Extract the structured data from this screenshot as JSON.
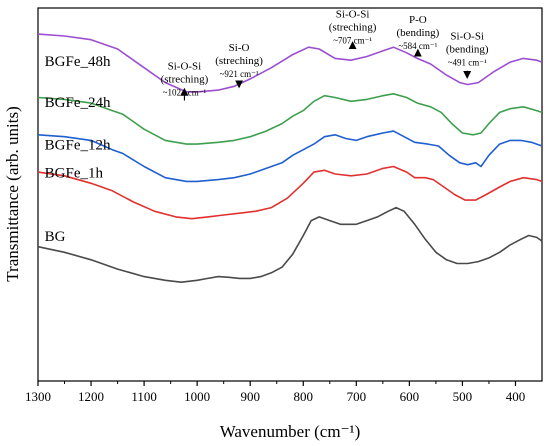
{
  "chart_data": {
    "type": "line",
    "xlabel": "Wavenumber (cm⁻¹)",
    "ylabel": "Transmittance (arb. units)",
    "xlim": [
      1300,
      350
    ],
    "x_reversed": true,
    "x_ticks": [
      1300,
      1200,
      1100,
      1000,
      900,
      800,
      700,
      600,
      500,
      400
    ],
    "y_ticks_shown": false,
    "grid": false,
    "series": [
      {
        "name": "BGFe_48h",
        "color": "#9b4fd0",
        "label_pos": [
          1295,
          0.845
        ],
        "points": [
          [
            1300,
            0.93
          ],
          [
            1250,
            0.925
          ],
          [
            1200,
            0.915
          ],
          [
            1150,
            0.89
          ],
          [
            1100,
            0.84
          ],
          [
            1060,
            0.8
          ],
          [
            1020,
            0.775
          ],
          [
            1000,
            0.775
          ],
          [
            960,
            0.78
          ],
          [
            930,
            0.79
          ],
          [
            900,
            0.81
          ],
          [
            860,
            0.84
          ],
          [
            820,
            0.875
          ],
          [
            790,
            0.895
          ],
          [
            770,
            0.89
          ],
          [
            740,
            0.865
          ],
          [
            710,
            0.86
          ],
          [
            680,
            0.87
          ],
          [
            650,
            0.885
          ],
          [
            630,
            0.895
          ],
          [
            605,
            0.88
          ],
          [
            585,
            0.865
          ],
          [
            560,
            0.85
          ],
          [
            530,
            0.82
          ],
          [
            505,
            0.8
          ],
          [
            490,
            0.795
          ],
          [
            470,
            0.8
          ],
          [
            440,
            0.83
          ],
          [
            410,
            0.855
          ],
          [
            385,
            0.865
          ],
          [
            360,
            0.86
          ],
          [
            350,
            0.855
          ]
        ]
      },
      {
        "name": "BGFe_24h",
        "color": "#3f9f4f",
        "label_pos": [
          1295,
          0.735
        ],
        "points": [
          [
            1300,
            0.76
          ],
          [
            1250,
            0.755
          ],
          [
            1200,
            0.745
          ],
          [
            1160,
            0.725
          ],
          [
            1140,
            0.715
          ],
          [
            1100,
            0.675
          ],
          [
            1060,
            0.645
          ],
          [
            1020,
            0.635
          ],
          [
            1000,
            0.635
          ],
          [
            960,
            0.64
          ],
          [
            930,
            0.645
          ],
          [
            900,
            0.655
          ],
          [
            870,
            0.67
          ],
          [
            840,
            0.69
          ],
          [
            820,
            0.71
          ],
          [
            800,
            0.725
          ],
          [
            780,
            0.75
          ],
          [
            760,
            0.765
          ],
          [
            740,
            0.76
          ],
          [
            710,
            0.75
          ],
          [
            680,
            0.755
          ],
          [
            650,
            0.765
          ],
          [
            630,
            0.77
          ],
          [
            605,
            0.76
          ],
          [
            585,
            0.745
          ],
          [
            560,
            0.735
          ],
          [
            540,
            0.72
          ],
          [
            520,
            0.69
          ],
          [
            500,
            0.665
          ],
          [
            480,
            0.66
          ],
          [
            465,
            0.665
          ],
          [
            450,
            0.69
          ],
          [
            430,
            0.72
          ],
          [
            410,
            0.73
          ],
          [
            385,
            0.735
          ],
          [
            360,
            0.725
          ],
          [
            350,
            0.72
          ]
        ]
      },
      {
        "name": "BGFe_12h",
        "color": "#1f5fd0",
        "label_pos": [
          1295,
          0.62
        ],
        "points": [
          [
            1300,
            0.66
          ],
          [
            1250,
            0.655
          ],
          [
            1200,
            0.645
          ],
          [
            1160,
            0.62
          ],
          [
            1140,
            0.61
          ],
          [
            1100,
            0.575
          ],
          [
            1060,
            0.545
          ],
          [
            1020,
            0.535
          ],
          [
            1000,
            0.535
          ],
          [
            960,
            0.54
          ],
          [
            930,
            0.545
          ],
          [
            900,
            0.555
          ],
          [
            870,
            0.57
          ],
          [
            840,
            0.585
          ],
          [
            820,
            0.605
          ],
          [
            800,
            0.62
          ],
          [
            780,
            0.635
          ],
          [
            760,
            0.655
          ],
          [
            740,
            0.66
          ],
          [
            720,
            0.65
          ],
          [
            700,
            0.645
          ],
          [
            680,
            0.655
          ],
          [
            650,
            0.665
          ],
          [
            630,
            0.67
          ],
          [
            610,
            0.655
          ],
          [
            590,
            0.64
          ],
          [
            565,
            0.635
          ],
          [
            545,
            0.63
          ],
          [
            525,
            0.605
          ],
          [
            505,
            0.585
          ],
          [
            490,
            0.58
          ],
          [
            475,
            0.585
          ],
          [
            465,
            0.575
          ],
          [
            450,
            0.605
          ],
          [
            430,
            0.635
          ],
          [
            410,
            0.645
          ],
          [
            390,
            0.645
          ],
          [
            370,
            0.64
          ],
          [
            350,
            0.63
          ]
        ]
      },
      {
        "name": "BGFe_1h",
        "color": "#e0312f",
        "label_pos": [
          1295,
          0.545
        ],
        "points": [
          [
            1300,
            0.56
          ],
          [
            1250,
            0.55
          ],
          [
            1200,
            0.53
          ],
          [
            1160,
            0.51
          ],
          [
            1120,
            0.48
          ],
          [
            1080,
            0.455
          ],
          [
            1040,
            0.44
          ],
          [
            1010,
            0.435
          ],
          [
            980,
            0.44
          ],
          [
            950,
            0.445
          ],
          [
            920,
            0.45
          ],
          [
            890,
            0.455
          ],
          [
            860,
            0.465
          ],
          [
            830,
            0.49
          ],
          [
            800,
            0.53
          ],
          [
            780,
            0.56
          ],
          [
            760,
            0.565
          ],
          [
            740,
            0.555
          ],
          [
            710,
            0.55
          ],
          [
            680,
            0.555
          ],
          [
            650,
            0.57
          ],
          [
            630,
            0.575
          ],
          [
            605,
            0.56
          ],
          [
            590,
            0.545
          ],
          [
            570,
            0.545
          ],
          [
            555,
            0.54
          ],
          [
            535,
            0.52
          ],
          [
            515,
            0.5
          ],
          [
            495,
            0.485
          ],
          [
            475,
            0.485
          ],
          [
            455,
            0.5
          ],
          [
            430,
            0.52
          ],
          [
            410,
            0.535
          ],
          [
            385,
            0.545
          ],
          [
            360,
            0.54
          ],
          [
            350,
            0.535
          ]
        ]
      },
      {
        "name": "BG",
        "color": "#4a4a4a",
        "label_pos": [
          1295,
          0.375
        ],
        "points": [
          [
            1300,
            0.36
          ],
          [
            1250,
            0.345
          ],
          [
            1200,
            0.325
          ],
          [
            1150,
            0.3
          ],
          [
            1100,
            0.28
          ],
          [
            1060,
            0.27
          ],
          [
            1030,
            0.265
          ],
          [
            1000,
            0.27
          ],
          [
            980,
            0.275
          ],
          [
            960,
            0.28
          ],
          [
            940,
            0.278
          ],
          [
            920,
            0.275
          ],
          [
            900,
            0.275
          ],
          [
            880,
            0.28
          ],
          [
            860,
            0.29
          ],
          [
            840,
            0.305
          ],
          [
            820,
            0.34
          ],
          [
            800,
            0.39
          ],
          [
            785,
            0.43
          ],
          [
            770,
            0.44
          ],
          [
            750,
            0.43
          ],
          [
            730,
            0.42
          ],
          [
            700,
            0.42
          ],
          [
            680,
            0.43
          ],
          [
            660,
            0.44
          ],
          [
            640,
            0.455
          ],
          [
            625,
            0.465
          ],
          [
            610,
            0.455
          ],
          [
            590,
            0.42
          ],
          [
            570,
            0.38
          ],
          [
            550,
            0.345
          ],
          [
            530,
            0.325
          ],
          [
            510,
            0.315
          ],
          [
            490,
            0.315
          ],
          [
            470,
            0.32
          ],
          [
            450,
            0.33
          ],
          [
            430,
            0.345
          ],
          [
            410,
            0.365
          ],
          [
            390,
            0.38
          ],
          [
            375,
            0.39
          ],
          [
            360,
            0.385
          ],
          [
            350,
            0.375
          ]
        ]
      }
    ],
    "annotations": [
      {
        "lines": [
          "Si-O-Si",
          "(streching)"
        ],
        "sub": "~1024 cm⁻¹",
        "x": 1024,
        "text_y": 0.835,
        "arrow_from": 0.785,
        "arrow_to": 0.77
      },
      {
        "lines": [
          "Si-O",
          "(streching)"
        ],
        "sub": "~921 cm⁻¹",
        "x": 921,
        "text_y": 0.885,
        "arrow_from": 0.835,
        "arrow_to": 0.79
      },
      {
        "lines": [
          "Si-O-Si",
          "(streching)"
        ],
        "sub": "~707 cm⁻¹",
        "x": 707,
        "text_y": 0.975,
        "arrow_from": 0.925,
        "arrow_to": 0.895
      },
      {
        "lines": [
          "P-O",
          "(bending)"
        ],
        "sub": "~584 cm⁻¹",
        "x": 584,
        "text_y": 0.96,
        "arrow_from": 0.91,
        "arrow_to": 0.875
      },
      {
        "lines": [
          "Si-O-Si",
          "(bending)"
        ],
        "sub": "~491 cm⁻¹",
        "x": 491,
        "text_y": 0.915,
        "arrow_from": 0.865,
        "arrow_to": 0.815
      }
    ]
  }
}
